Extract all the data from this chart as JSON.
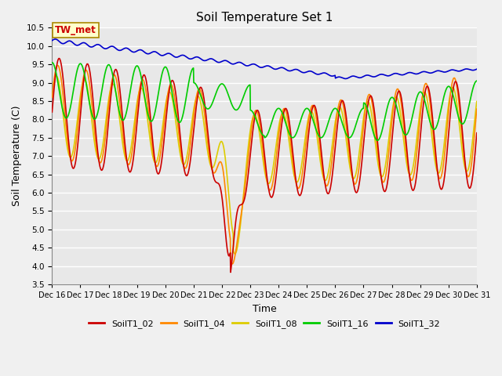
{
  "title": "Soil Temperature Set 1",
  "xlabel": "Time",
  "ylabel": "Soil Temperature (C)",
  "ylim": [
    3.5,
    10.5
  ],
  "yticks": [
    3.5,
    4.0,
    4.5,
    5.0,
    5.5,
    6.0,
    6.5,
    7.0,
    7.5,
    8.0,
    8.5,
    9.0,
    9.5,
    10.0,
    10.5
  ],
  "xlim_start": 16,
  "xlim_end": 31,
  "xtick_labels": [
    "Dec 16",
    "Dec 17",
    "Dec 18",
    "Dec 19",
    "Dec 20",
    "Dec 21",
    "Dec 22",
    "Dec 23",
    "Dec 24",
    "Dec 25",
    "Dec 26",
    "Dec 27",
    "Dec 28",
    "Dec 29",
    "Dec 30",
    "Dec 31"
  ],
  "bg_color": "#e8e8e8",
  "fig_color": "#f0f0f0",
  "grid_color": "white",
  "series_colors": {
    "SoilT1_02": "#cc0000",
    "SoilT1_04": "#ff8800",
    "SoilT1_08": "#ddcc00",
    "SoilT1_16": "#00cc00",
    "SoilT1_32": "#0000cc"
  },
  "tw_met_label": "TW_met",
  "tw_met_color": "#cc0000",
  "tw_met_bg": "#ffffcc",
  "legend_entries": [
    "SoilT1_02",
    "SoilT1_04",
    "SoilT1_08",
    "SoilT1_16",
    "SoilT1_32"
  ]
}
